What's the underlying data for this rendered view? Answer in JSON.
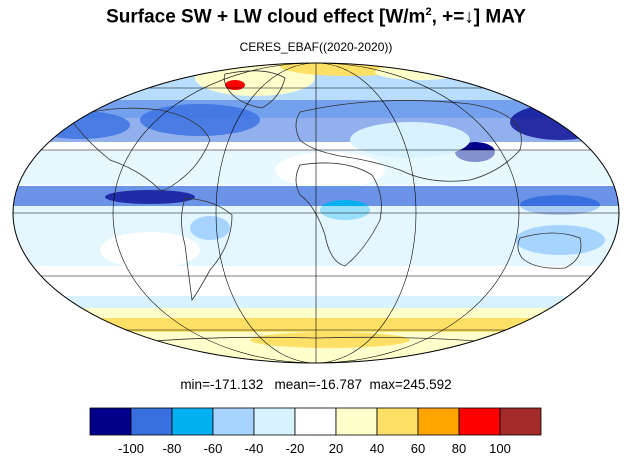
{
  "title": {
    "prefix": "Surface SW + LW cloud effect [W/m",
    "sup": "2",
    "suffix": ", +=↓]  MAY"
  },
  "subtitle": "CERES_EBAF((2020-2020))",
  "stats": {
    "min_label": "min=",
    "min": "-171.132",
    "mean_label": "mean=",
    "mean": "-16.787",
    "max_label": "max=",
    "max": "245.592"
  },
  "colorbar": {
    "colors": [
      "#00008b",
      "#3a6fe0",
      "#00b0f0",
      "#a6d4ff",
      "#d8f3ff",
      "#ffffff",
      "#ffffcc",
      "#ffe066",
      "#ffa500",
      "#ff0000",
      "#a52a2a"
    ],
    "tick_labels": [
      "-100",
      "-80",
      "-60",
      "-40",
      "-20",
      "20",
      "40",
      "60",
      "80",
      "100"
    ]
  }
}
